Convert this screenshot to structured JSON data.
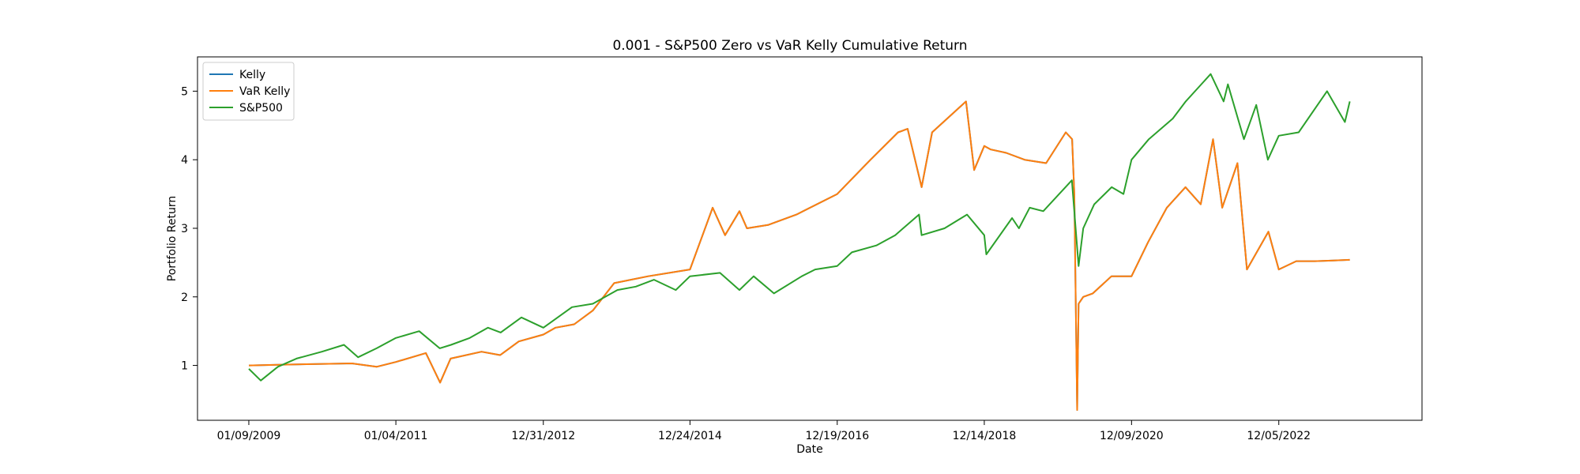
{
  "chart_data": {
    "type": "line",
    "title": "0.001 - S&P500 Zero vs VaR Kelly Cumulative Return",
    "xlabel": "Date",
    "ylabel": "Portfolio Return",
    "x_ticks": [
      "01/09/2009",
      "01/04/2011",
      "12/31/2012",
      "12/24/2014",
      "12/19/2016",
      "12/14/2018",
      "12/09/2020",
      "12/05/2022"
    ],
    "y_ticks": [
      "1",
      "2",
      "3",
      "4",
      "5"
    ],
    "ylim": [
      0.2,
      5.5
    ],
    "xlim": [
      "2008-05-01",
      "2024-11-10"
    ],
    "grid": false,
    "legend_position": "top-left",
    "series": [
      {
        "name": "Kelly",
        "color": "#1f77b4",
        "x": [
          "2009-01-09",
          "2009-06-01",
          "2010-06-01",
          "2010-10-01",
          "2011-01-04",
          "2011-06-01",
          "2011-08-10",
          "2011-10-01",
          "2012-03-01",
          "2012-06-01",
          "2012-09-01",
          "2012-12-31",
          "2013-03-01",
          "2013-06-01",
          "2013-09-01",
          "2013-12-15",
          "2014-06-01",
          "2014-12-24",
          "2015-04-15",
          "2015-06-15",
          "2015-08-25",
          "2015-10-01",
          "2016-01-15",
          "2016-06-01",
          "2016-12-19",
          "2017-06-01",
          "2017-10-15",
          "2017-12-01",
          "2018-02-08",
          "2018-04-01",
          "2018-09-15",
          "2018-10-25",
          "2018-12-14",
          "2019-01-15",
          "2019-04-01",
          "2019-07-01",
          "2019-10-15",
          "2020-01-20",
          "2020-02-20",
          "2020-03-02",
          "2020-03-16",
          "2020-03-23",
          "2020-04-15",
          "2020-06-01",
          "2020-09-01",
          "2020-12-09",
          "2021-03-01",
          "2021-06-01",
          "2021-09-01",
          "2021-11-15",
          "2022-01-15",
          "2022-03-01",
          "2022-05-15",
          "2022-07-01",
          "2022-10-15",
          "2022-12-05",
          "2023-03-01",
          "2023-06-01",
          "2023-09-01",
          "2023-11-20"
        ],
        "values": [
          1.0,
          1.01,
          1.03,
          0.98,
          1.05,
          1.18,
          0.75,
          1.1,
          1.2,
          1.15,
          1.35,
          1.45,
          1.55,
          1.6,
          1.8,
          2.2,
          2.3,
          2.4,
          3.3,
          2.9,
          3.25,
          3.0,
          3.05,
          3.2,
          3.5,
          4.0,
          4.4,
          4.45,
          3.6,
          4.4,
          4.85,
          3.85,
          4.2,
          4.15,
          4.1,
          4.0,
          3.95,
          4.4,
          4.3,
          3.5,
          0.35,
          1.9,
          2.0,
          2.05,
          2.3,
          2.3,
          2.8,
          3.3,
          3.6,
          3.35,
          4.3,
          3.3,
          3.95,
          2.4,
          2.95,
          2.4,
          2.52,
          2.52,
          2.53,
          2.54
        ]
      },
      {
        "name": "VaR Kelly",
        "color": "#ff7f0e",
        "x": [
          "2009-01-09",
          "2009-06-01",
          "2010-06-01",
          "2010-10-01",
          "2011-01-04",
          "2011-06-01",
          "2011-08-10",
          "2011-10-01",
          "2012-03-01",
          "2012-06-01",
          "2012-09-01",
          "2012-12-31",
          "2013-03-01",
          "2013-06-01",
          "2013-09-01",
          "2013-12-15",
          "2014-06-01",
          "2014-12-24",
          "2015-04-15",
          "2015-06-15",
          "2015-08-25",
          "2015-10-01",
          "2016-01-15",
          "2016-06-01",
          "2016-12-19",
          "2017-06-01",
          "2017-10-15",
          "2017-12-01",
          "2018-02-08",
          "2018-04-01",
          "2018-09-15",
          "2018-10-25",
          "2018-12-14",
          "2019-01-15",
          "2019-04-01",
          "2019-07-01",
          "2019-10-15",
          "2020-01-20",
          "2020-02-20",
          "2020-03-02",
          "2020-03-16",
          "2020-03-23",
          "2020-04-15",
          "2020-06-01",
          "2020-09-01",
          "2020-12-09",
          "2021-03-01",
          "2021-06-01",
          "2021-09-01",
          "2021-11-15",
          "2022-01-15",
          "2022-03-01",
          "2022-05-15",
          "2022-07-01",
          "2022-10-15",
          "2022-12-05",
          "2023-03-01",
          "2023-06-01",
          "2023-09-01",
          "2023-11-20"
        ],
        "values": [
          1.0,
          1.01,
          1.03,
          0.98,
          1.05,
          1.18,
          0.75,
          1.1,
          1.2,
          1.15,
          1.35,
          1.45,
          1.55,
          1.6,
          1.8,
          2.2,
          2.3,
          2.4,
          3.3,
          2.9,
          3.25,
          3.0,
          3.05,
          3.2,
          3.5,
          4.0,
          4.4,
          4.45,
          3.6,
          4.4,
          4.85,
          3.85,
          4.2,
          4.15,
          4.1,
          4.0,
          3.95,
          4.4,
          4.3,
          3.5,
          0.35,
          1.9,
          2.0,
          2.05,
          2.3,
          2.3,
          2.8,
          3.3,
          3.6,
          3.35,
          4.3,
          3.3,
          3.95,
          2.4,
          2.95,
          2.4,
          2.52,
          2.52,
          2.53,
          2.54
        ]
      },
      {
        "name": "S&P500",
        "color": "#2ca02c",
        "x": [
          "2009-01-09",
          "2009-03-09",
          "2009-06-01",
          "2009-09-01",
          "2010-01-04",
          "2010-04-23",
          "2010-07-02",
          "2010-10-01",
          "2011-01-04",
          "2011-04-29",
          "2011-08-08",
          "2011-10-03",
          "2012-01-03",
          "2012-04-02",
          "2012-06-04",
          "2012-09-14",
          "2012-12-31",
          "2013-05-21",
          "2013-09-01",
          "2013-12-31",
          "2014-04-01",
          "2014-06-30",
          "2014-10-15",
          "2014-12-24",
          "2015-05-21",
          "2015-08-25",
          "2015-11-03",
          "2016-02-11",
          "2016-06-27",
          "2016-09-01",
          "2016-12-19",
          "2017-03-01",
          "2017-06-30",
          "2017-10-01",
          "2018-01-26",
          "2018-02-08",
          "2018-06-01",
          "2018-09-20",
          "2018-12-14",
          "2018-12-24",
          "2019-04-30",
          "2019-06-03",
          "2019-07-26",
          "2019-10-01",
          "2020-02-19",
          "2020-03-23",
          "2020-04-15",
          "2020-06-08",
          "2020-09-02",
          "2020-10-30",
          "2020-12-09",
          "2021-03-04",
          "2021-06-30",
          "2021-09-02",
          "2022-01-03",
          "2022-03-08",
          "2022-03-29",
          "2022-06-16",
          "2022-08-16",
          "2022-10-12",
          "2022-12-05",
          "2023-03-13",
          "2023-07-31",
          "2023-10-27",
          "2023-11-20"
        ],
        "values": [
          0.95,
          0.78,
          0.98,
          1.1,
          1.2,
          1.3,
          1.12,
          1.25,
          1.4,
          1.5,
          1.25,
          1.3,
          1.4,
          1.55,
          1.48,
          1.7,
          1.55,
          1.85,
          1.9,
          2.1,
          2.15,
          2.25,
          2.1,
          2.3,
          2.35,
          2.1,
          2.3,
          2.05,
          2.3,
          2.4,
          2.45,
          2.65,
          2.75,
          2.9,
          3.2,
          2.9,
          3.0,
          3.2,
          2.9,
          2.62,
          3.15,
          3.0,
          3.3,
          3.25,
          3.7,
          2.45,
          3.0,
          3.35,
          3.6,
          3.5,
          4.0,
          4.3,
          4.6,
          4.85,
          5.25,
          4.85,
          5.1,
          4.3,
          4.8,
          4.0,
          4.35,
          4.4,
          5.0,
          4.55,
          4.85
        ]
      }
    ]
  }
}
